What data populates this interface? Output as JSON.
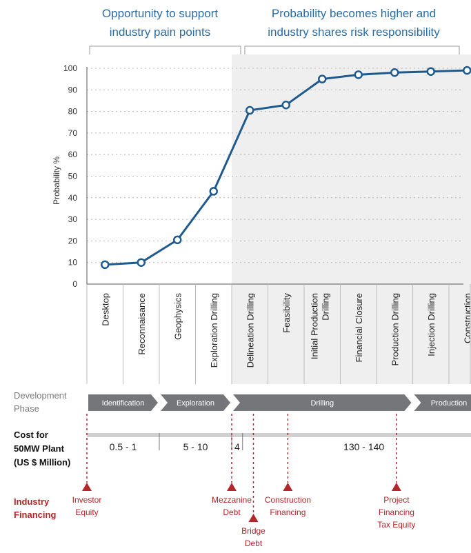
{
  "headers": {
    "left": [
      "Opportunity to support",
      "industry pain points"
    ],
    "right": [
      "Probability becomes higher and",
      "industry shares risk responsibility"
    ]
  },
  "chart_data": {
    "type": "line",
    "ylabel": "Probability %",
    "ylim": [
      0,
      100
    ],
    "yticks": [
      0,
      10,
      20,
      30,
      40,
      50,
      60,
      70,
      80,
      90,
      100
    ],
    "grid": true,
    "categories": [
      "Desktop",
      "Reconnaisance",
      "Geophysics",
      "Exploration Drilling",
      "Delineation Drilling",
      "Feasibility",
      "Initial Production Drilling",
      "Financial Closure",
      "Production Drilling",
      "Injection Drilling",
      "Construction"
    ],
    "series": [
      {
        "values": [
          9,
          10,
          20.5,
          43,
          80.5,
          83,
          95,
          97,
          98,
          98.5,
          99
        ]
      }
    ],
    "shaded_from_category": "Delineation Drilling",
    "line_color": "#1f5a8e"
  },
  "development_phase": {
    "label": [
      "Development",
      "Phase"
    ],
    "phases": [
      {
        "name": "Identification",
        "from": 0,
        "to": 2
      },
      {
        "name": "Exploration",
        "from": 2,
        "to": 4
      },
      {
        "name": "Drilling",
        "from": 4,
        "to": 9
      },
      {
        "name": "Production",
        "from": 9,
        "to": 11
      }
    ]
  },
  "cost": {
    "label": [
      "Cost for",
      "50MW Plant",
      "(US $ Million)"
    ],
    "segments": [
      {
        "text": "0.5 - 1",
        "from": 0,
        "to": 2
      },
      {
        "text": "5 - 10",
        "from": 2,
        "to": 4
      },
      {
        "text": "4",
        "from": 4,
        "to": 4.3
      },
      {
        "text": "130 - 140",
        "from": 4.3,
        "to": 11
      }
    ]
  },
  "financing": {
    "label": [
      "Industry",
      "Financing"
    ],
    "items": [
      {
        "lines": [
          "Investor",
          "Equity"
        ],
        "pos": 0,
        "level": 0
      },
      {
        "lines": [
          "Mezzanine",
          "Debt"
        ],
        "pos": 4,
        "level": 0
      },
      {
        "lines": [
          "Bridge",
          "Debt"
        ],
        "pos": 4.6,
        "level": 1
      },
      {
        "lines": [
          "Construction",
          "Financing"
        ],
        "pos": 5.55,
        "level": 0
      },
      {
        "lines": [
          "Project",
          "Financing",
          "Tax Equity"
        ],
        "pos": 8.55,
        "level": 0
      }
    ]
  },
  "colors": {
    "header_text": "#2b6ca3",
    "shade": "#efefef",
    "phase_arrow": "#747679",
    "financing": "#b3262a",
    "cost_bar": "#d0d0d0",
    "side_label": "#7a7a7a"
  }
}
